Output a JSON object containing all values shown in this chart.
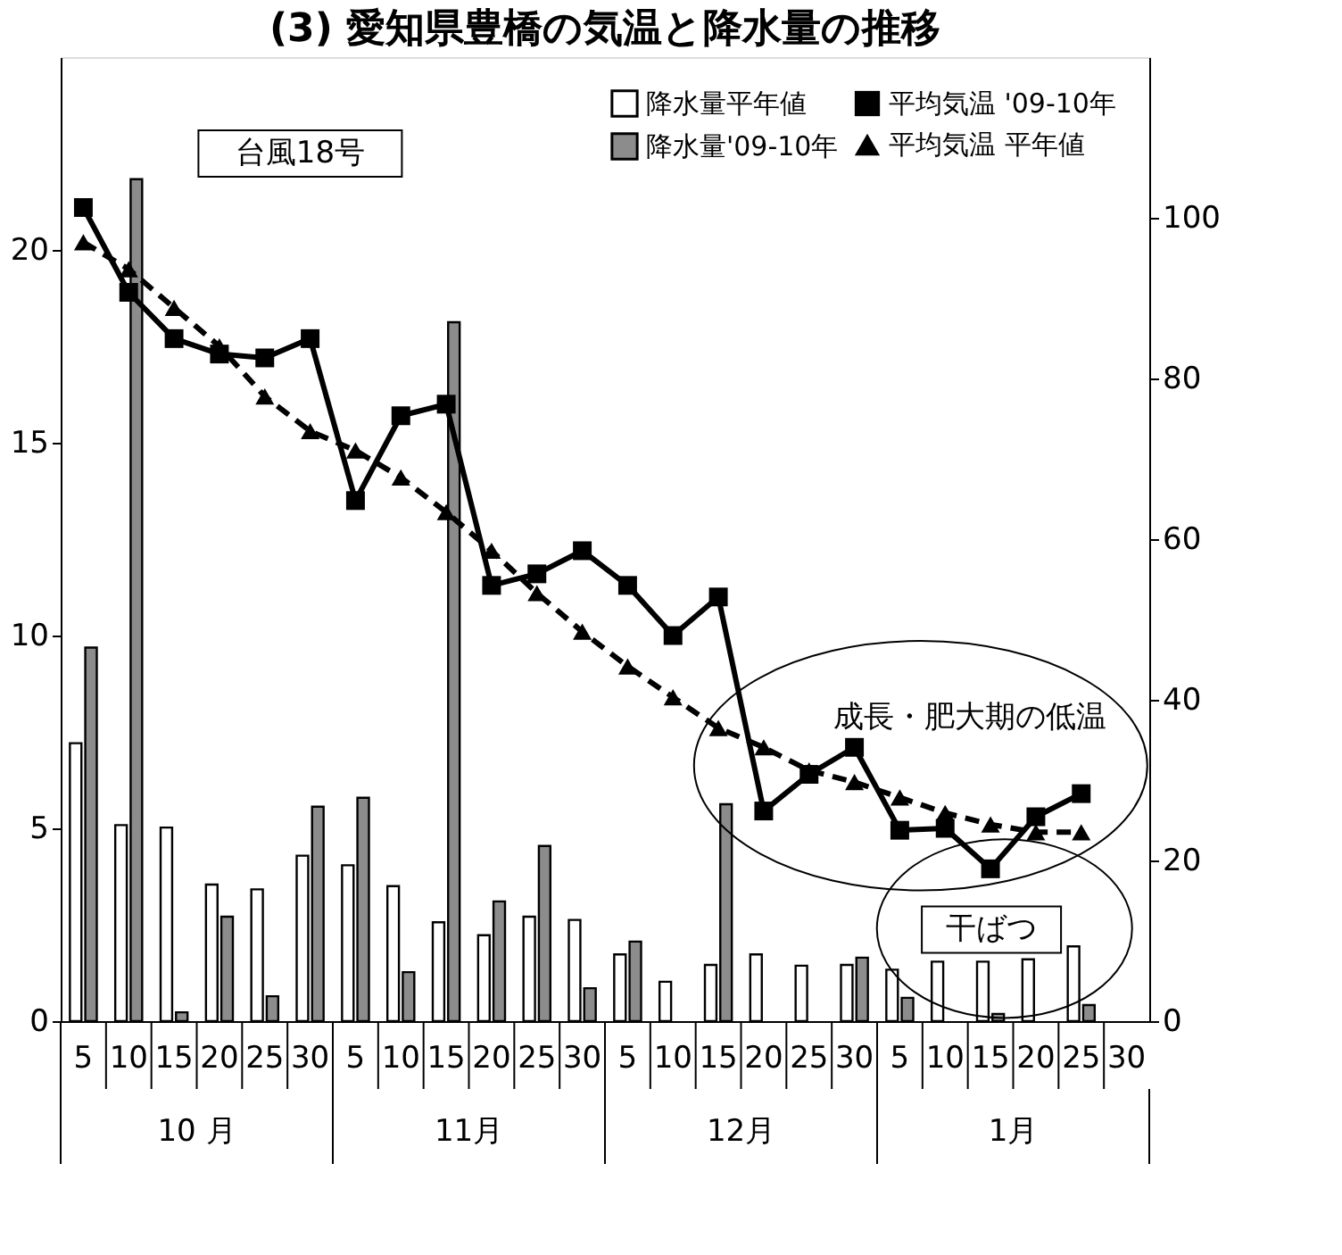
{
  "chart_data": {
    "type": "bar",
    "title": "(3) 愛知県豊橋の気温と降水量の推移",
    "categories": [
      "5",
      "10",
      "15",
      "20",
      "25",
      "30",
      "5",
      "10",
      "15",
      "20",
      "25",
      "30",
      "5",
      "10",
      "15",
      "20",
      "25",
      "30",
      "5",
      "10",
      "15",
      "20",
      "25",
      "30"
    ],
    "series": [
      {
        "name": "降水量平年値",
        "type": "bar",
        "axis": "y2",
        "color": "#ffffff",
        "values": [
          34.6,
          24.4,
          24.1,
          17.0,
          16.4,
          20.6,
          19.4,
          16.8,
          12.3,
          10.7,
          13.0,
          12.6,
          8.3,
          4.9,
          7.0,
          8.3,
          6.9,
          7.0,
          6.4,
          7.4,
          7.4,
          7.7,
          9.3,
          null
        ]
      },
      {
        "name": "降水量'09-10年",
        "type": "bar",
        "axis": "y2",
        "color": "#8c8c8c",
        "values": [
          46.5,
          104.8,
          1.1,
          13.0,
          3.1,
          26.7,
          27.8,
          6.1,
          87.0,
          14.9,
          21.8,
          4.1,
          9.9,
          null,
          27.0,
          null,
          null,
          7.9,
          2.9,
          null,
          0.9,
          null,
          2.0,
          null
        ]
      },
      {
        "name": "平均気温 '09-10年",
        "type": "line",
        "color": "#000000",
        "marker": "square",
        "line_style": "solid",
        "values": [
          21.1,
          18.9,
          17.7,
          17.3,
          17.2,
          17.7,
          13.5,
          15.7,
          16.0,
          11.3,
          11.6,
          12.2,
          11.3,
          10.0,
          11.0,
          5.45,
          6.4,
          7.1,
          4.95,
          5.0,
          3.95,
          5.3,
          5.9,
          null
        ]
      },
      {
        "name": "平均気温 平年値",
        "type": "line",
        "color": "#000000",
        "marker": "triangle",
        "line_style": "dashed",
        "values": [
          20.2,
          19.5,
          18.5,
          17.5,
          16.2,
          15.3,
          14.8,
          14.1,
          13.2,
          12.2,
          11.1,
          10.1,
          9.2,
          8.4,
          7.6,
          7.1,
          6.5,
          6.2,
          5.8,
          5.4,
          5.1,
          4.9,
          4.9,
          null
        ]
      }
    ],
    "ylim": [
      0,
      25
    ],
    "yticks": [
      0,
      5,
      10,
      15,
      20
    ],
    "y2lim": [
      0,
      120
    ],
    "y2ticks": [
      0,
      20,
      40,
      60,
      80,
      100
    ],
    "legend": "top right",
    "grid": false,
    "annotations": [
      "台風18号",
      "成長・肥大期の低温",
      "干ばつ",
      "10 月",
      "11月",
      "12月",
      "1月"
    ]
  }
}
